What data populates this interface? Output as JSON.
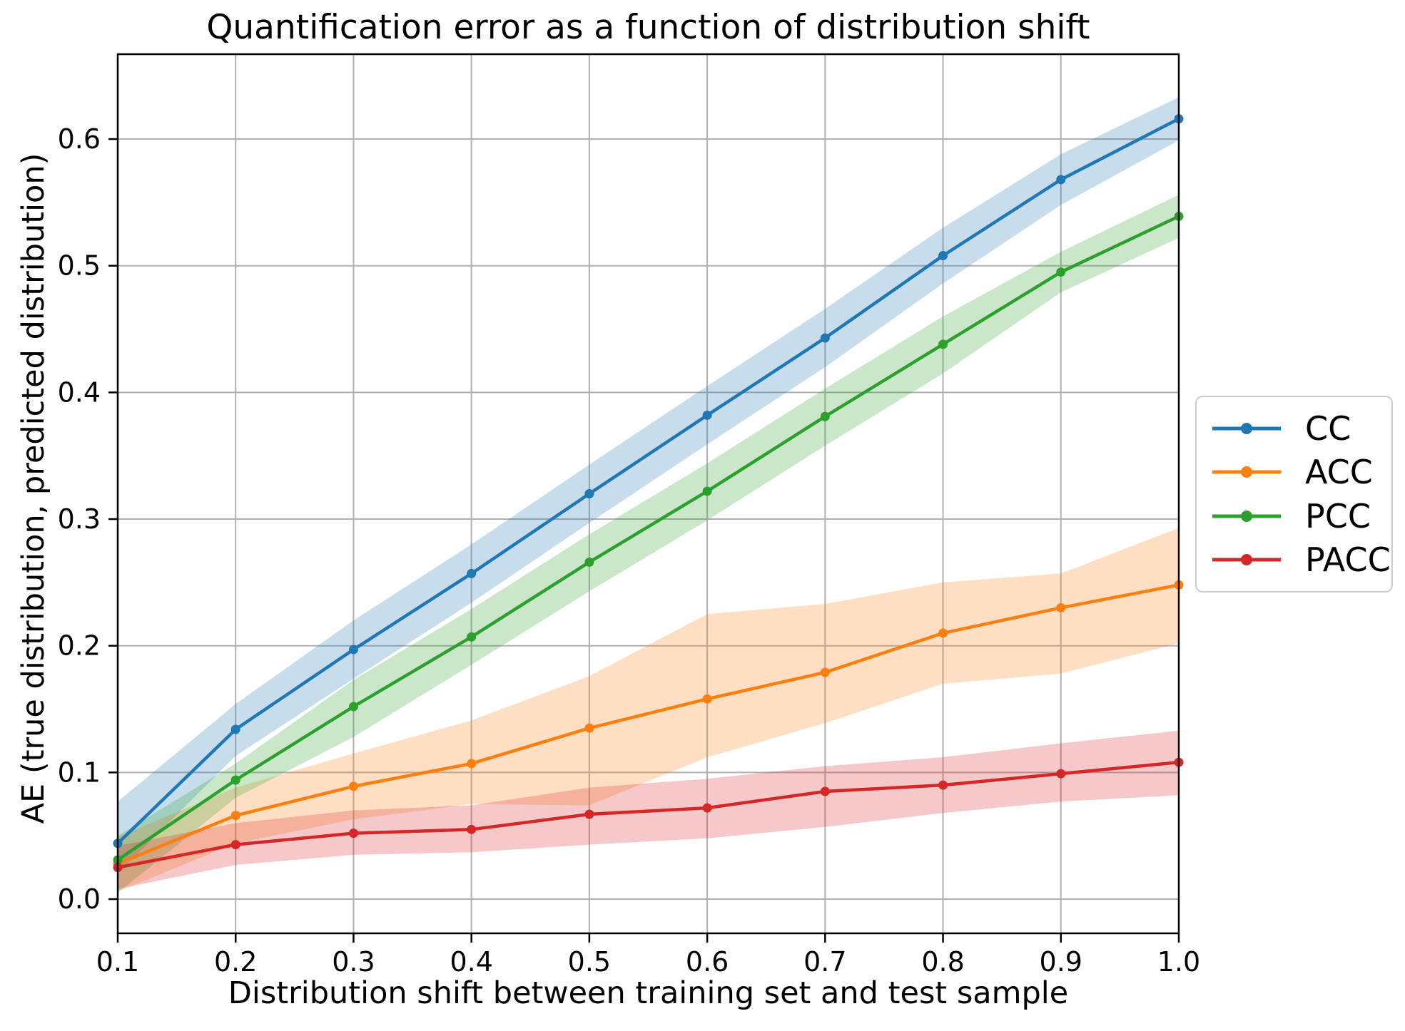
{
  "chart_data": {
    "type": "line",
    "title": "Quantification error as a function of distribution shift",
    "xlabel": "Distribution shift between training set and test sample",
    "ylabel": "AE (true distribution, predicted distribution)",
    "x": [
      0.1,
      0.2,
      0.3,
      0.4,
      0.5,
      0.6,
      0.7,
      0.8,
      0.9,
      1.0
    ],
    "x_ticks": [
      0.1,
      0.2,
      0.3,
      0.4,
      0.5,
      0.6,
      0.7,
      0.8,
      0.9,
      1.0
    ],
    "y_ticks": [
      0.0,
      0.1,
      0.2,
      0.3,
      0.4,
      0.5,
      0.6
    ],
    "xlim": [
      0.1,
      1.0
    ],
    "ylim": [
      -0.027,
      0.667
    ],
    "grid": true,
    "grid_color": "#b0b0b0",
    "background": "#ffffff",
    "band_opacity": 0.25,
    "legend_position": "right-outside",
    "series": [
      {
        "name": "CC",
        "color": "#1f77b4",
        "values": [
          0.044,
          0.134,
          0.197,
          0.257,
          0.32,
          0.382,
          0.443,
          0.508,
          0.568,
          0.616
        ],
        "band_lo": [
          0.02,
          0.113,
          0.174,
          0.234,
          0.297,
          0.359,
          0.42,
          0.486,
          0.548,
          0.599
        ],
        "band_hi": [
          0.077,
          0.154,
          0.22,
          0.28,
          0.343,
          0.405,
          0.466,
          0.53,
          0.588,
          0.633
        ]
      },
      {
        "name": "ACC",
        "color": "#ff7f0e",
        "values": [
          0.028,
          0.066,
          0.089,
          0.107,
          0.135,
          0.158,
          0.179,
          0.21,
          0.23,
          0.248
        ],
        "band_lo": [
          0.006,
          0.044,
          0.063,
          0.075,
          0.074,
          0.112,
          0.139,
          0.17,
          0.178,
          0.202
        ],
        "band_hi": [
          0.049,
          0.088,
          0.115,
          0.141,
          0.176,
          0.225,
          0.233,
          0.25,
          0.257,
          0.293
        ]
      },
      {
        "name": "PCC",
        "color": "#2ca02c",
        "values": [
          0.031,
          0.094,
          0.152,
          0.207,
          0.266,
          0.322,
          0.381,
          0.438,
          0.495,
          0.539
        ],
        "band_lo": [
          0.005,
          0.08,
          0.128,
          0.185,
          0.243,
          0.299,
          0.358,
          0.415,
          0.479,
          0.522
        ],
        "band_hi": [
          0.05,
          0.107,
          0.173,
          0.229,
          0.288,
          0.344,
          0.403,
          0.46,
          0.511,
          0.556
        ]
      },
      {
        "name": "PACC",
        "color": "#d62728",
        "values": [
          0.025,
          0.043,
          0.052,
          0.055,
          0.067,
          0.072,
          0.085,
          0.09,
          0.099,
          0.108
        ],
        "band_lo": [
          0.008,
          0.027,
          0.035,
          0.037,
          0.043,
          0.048,
          0.057,
          0.068,
          0.077,
          0.082
        ],
        "band_hi": [
          0.042,
          0.06,
          0.07,
          0.074,
          0.088,
          0.095,
          0.105,
          0.112,
          0.123,
          0.133
        ]
      }
    ]
  }
}
